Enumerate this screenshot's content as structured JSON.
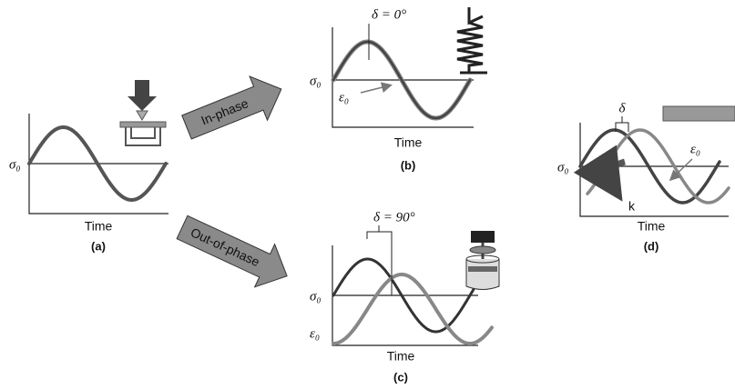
{
  "panels": [
    {
      "label": "(a)",
      "y_label": "σ₀",
      "x_label": "Time"
    },
    {
      "label": "(b)",
      "y_label": "σ₀",
      "x_label": "Time",
      "delta": "δ = 0°",
      "strain_label": "ε₀"
    },
    {
      "label": "(c)",
      "y_label": "σ₀",
      "x_label": "Time",
      "delta": "δ = 90°",
      "strain_label": "ε₀"
    },
    {
      "label": "(d)",
      "y_label": "σ₀",
      "x_label": "Time",
      "delta": "δ",
      "strain_label": "ε₀",
      "rotation_label": "k"
    }
  ],
  "arrows": [
    {
      "label": "In-phase"
    },
    {
      "label": "Out-of-phase"
    }
  ]
}
